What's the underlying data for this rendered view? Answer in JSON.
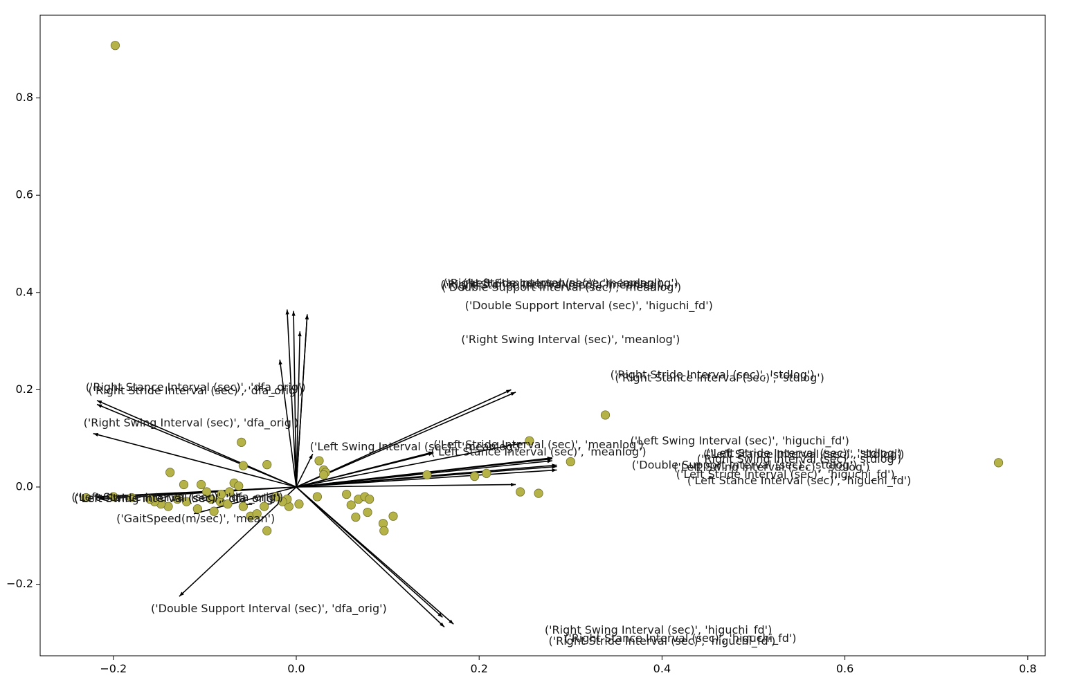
{
  "chart_data": {
    "type": "scatter",
    "title": "",
    "xlabel": "",
    "ylabel": "",
    "xlim": [
      -0.28,
      0.82
    ],
    "ylim": [
      -0.35,
      0.97
    ],
    "xticks": [
      {
        "value": -0.2,
        "label": "−0.2"
      },
      {
        "value": 0.0,
        "label": "0.0"
      },
      {
        "value": 0.2,
        "label": "0.2"
      },
      {
        "value": 0.4,
        "label": "0.4"
      },
      {
        "value": 0.6,
        "label": "0.6"
      },
      {
        "value": 0.8,
        "label": "0.8"
      }
    ],
    "yticks": [
      {
        "value": -0.2,
        "label": "−0.2"
      },
      {
        "value": 0.0,
        "label": "0.0"
      },
      {
        "value": 0.2,
        "label": "0.2"
      },
      {
        "value": 0.4,
        "label": "0.4"
      },
      {
        "value": 0.6,
        "label": "0.6"
      },
      {
        "value": 0.8,
        "label": "0.8"
      }
    ],
    "grid": false,
    "colors": {
      "points": "#b5b347",
      "point_edge": "#6f6e2a",
      "arrows": "#000000"
    },
    "points": [
      {
        "x": -0.198,
        "y": 0.908
      },
      {
        "x": 0.768,
        "y": 0.05
      },
      {
        "x": 0.338,
        "y": 0.148
      },
      {
        "x": 0.3,
        "y": 0.052
      },
      {
        "x": 0.255,
        "y": 0.095
      },
      {
        "x": 0.208,
        "y": 0.028
      },
      {
        "x": 0.195,
        "y": 0.022
      },
      {
        "x": 0.143,
        "y": 0.025
      },
      {
        "x": 0.245,
        "y": -0.01
      },
      {
        "x": 0.265,
        "y": -0.013
      },
      {
        "x": 0.025,
        "y": 0.054
      },
      {
        "x": 0.03,
        "y": 0.035
      },
      {
        "x": 0.032,
        "y": 0.03
      },
      {
        "x": 0.03,
        "y": 0.025
      },
      {
        "x": 0.023,
        "y": -0.02
      },
      {
        "x": 0.055,
        "y": -0.015
      },
      {
        "x": 0.06,
        "y": -0.037
      },
      {
        "x": 0.068,
        "y": -0.025
      },
      {
        "x": 0.075,
        "y": -0.02
      },
      {
        "x": 0.08,
        "y": -0.025
      },
      {
        "x": 0.078,
        "y": -0.052
      },
      {
        "x": 0.065,
        "y": -0.062
      },
      {
        "x": 0.095,
        "y": -0.075
      },
      {
        "x": 0.096,
        "y": -0.09
      },
      {
        "x": 0.106,
        "y": -0.06
      },
      {
        "x": -0.06,
        "y": 0.092
      },
      {
        "x": -0.058,
        "y": 0.044
      },
      {
        "x": -0.032,
        "y": 0.046
      },
      {
        "x": -0.138,
        "y": 0.03
      },
      {
        "x": -0.123,
        "y": 0.005
      },
      {
        "x": -0.104,
        "y": 0.005
      },
      {
        "x": -0.098,
        "y": -0.01
      },
      {
        "x": -0.093,
        "y": -0.025
      },
      {
        "x": -0.083,
        "y": -0.03
      },
      {
        "x": -0.073,
        "y": -0.01
      },
      {
        "x": -0.068,
        "y": 0.008
      },
      {
        "x": -0.063,
        "y": 0.002
      },
      {
        "x": -0.058,
        "y": -0.04
      },
      {
        "x": -0.05,
        "y": -0.06
      },
      {
        "x": -0.043,
        "y": -0.055
      },
      {
        "x": -0.035,
        "y": -0.04
      },
      {
        "x": -0.032,
        "y": -0.09
      },
      {
        "x": -0.008,
        "y": -0.04
      },
      {
        "x": -0.01,
        "y": -0.025
      },
      {
        "x": -0.015,
        "y": -0.03
      },
      {
        "x": -0.022,
        "y": -0.02
      },
      {
        "x": 0.003,
        "y": -0.035
      },
      {
        "x": -0.12,
        "y": -0.03
      },
      {
        "x": -0.13,
        "y": -0.025
      },
      {
        "x": -0.14,
        "y": -0.04
      },
      {
        "x": -0.148,
        "y": -0.035
      },
      {
        "x": -0.155,
        "y": -0.03
      },
      {
        "x": -0.16,
        "y": -0.025
      },
      {
        "x": -0.18,
        "y": -0.022
      },
      {
        "x": -0.2,
        "y": -0.02
      },
      {
        "x": -0.23,
        "y": -0.022
      },
      {
        "x": -0.108,
        "y": -0.045
      },
      {
        "x": -0.09,
        "y": -0.05
      },
      {
        "x": -0.075,
        "y": -0.035
      },
      {
        "x": -0.082,
        "y": -0.015
      }
    ],
    "loadings": [
      {
        "x": -0.01,
        "y": 0.365,
        "label": "('Right Stride Interval (sec)', 'meanlog')",
        "lx": 0.28,
        "ly": 0.418
      },
      {
        "x": -0.003,
        "y": 0.362,
        "label": "('Right Stance Interval (sec)', 'meanlog')",
        "lx": 0.28,
        "ly": 0.415
      },
      {
        "x": 0.012,
        "y": 0.355,
        "label": "('Double Support Interval (sec)', 'meanlog')",
        "lx": 0.29,
        "ly": 0.41
      },
      {
        "x": 0.012,
        "y": 0.355,
        "label": "('Double Support Interval (sec)', 'higuchi_fd')",
        "lx": 0.32,
        "ly": 0.372
      },
      {
        "x": 0.004,
        "y": 0.32,
        "label": "('Left Stance Interval (sec)', 'meanlog')",
        "lx": 0.3,
        "ly": 0.418
      },
      {
        "x": -0.018,
        "y": 0.262,
        "label": "('Right Swing Interval (sec)', 'meanlog')",
        "lx": 0.3,
        "ly": 0.302
      },
      {
        "x": -0.218,
        "y": 0.178,
        "label": "('Right Stance Interval (sec)', 'dfa_orig')",
        "lx": -0.11,
        "ly": 0.204
      },
      {
        "x": -0.218,
        "y": 0.17,
        "label": "('Right Stride Interval (sec)', 'dfa_orig')",
        "lx": -0.11,
        "ly": 0.197
      },
      {
        "x": -0.222,
        "y": 0.11,
        "label": "('Right Swing Interval (sec)', 'dfa_orig')",
        "lx": -0.115,
        "ly": 0.131
      },
      {
        "x": 0.235,
        "y": 0.2,
        "label": "('Right Stride Interval (sec)', 'stdlog')",
        "lx": 0.455,
        "ly": 0.23
      },
      {
        "x": 0.24,
        "y": 0.195,
        "label": "('Right Stance Interval (sec)', 'stdlog')",
        "lx": 0.463,
        "ly": 0.223
      },
      {
        "x": 0.018,
        "y": 0.068,
        "label": "('Left Swing Interval (sec)', 'meanlog')",
        "lx": 0.13,
        "ly": 0.082
      },
      {
        "x": 0.15,
        "y": 0.072,
        "label": "('Left Stride Interval (sec)', 'meanlog')",
        "lx": 0.265,
        "ly": 0.086
      },
      {
        "x": 0.15,
        "y": 0.07,
        "label": "('Left Stance Interval (sec)', 'meanlog')",
        "lx": 0.265,
        "ly": 0.071
      },
      {
        "x": 0.26,
        "y": 0.095,
        "label": "('Left Swing Interval (sec)', 'higuchi_fd')",
        "lx": 0.485,
        "ly": 0.094
      },
      {
        "x": 0.28,
        "y": 0.06,
        "label": "('Left Stride Interval (sec)', 'stdlog')",
        "lx": 0.555,
        "ly": 0.068
      },
      {
        "x": 0.28,
        "y": 0.058,
        "label": "('Left Stance Interval (sec)', 'stdlog')",
        "lx": 0.555,
        "ly": 0.066
      },
      {
        "x": 0.28,
        "y": 0.054,
        "label": "('Right Swing Interval (sec)', 'stdlog')",
        "lx": 0.55,
        "ly": 0.056
      },
      {
        "x": 0.285,
        "y": 0.045,
        "label": "('Double Support Interval (sec)', 'stdlog')",
        "lx": 0.49,
        "ly": 0.044
      },
      {
        "x": 0.285,
        "y": 0.042,
        "label": "('Left Swing Interval (sec)', 'stdlog')",
        "lx": 0.52,
        "ly": 0.04
      },
      {
        "x": 0.285,
        "y": 0.035,
        "label": "('Left Stride Interval (sec)', 'higuchi_fd')",
        "lx": 0.535,
        "ly": 0.025
      },
      {
        "x": 0.24,
        "y": 0.005,
        "label": "('Left Stance Interval (sec)', 'higuchi_fd')",
        "lx": 0.55,
        "ly": 0.012
      },
      {
        "x": -0.218,
        "y": -0.02,
        "label": "('Left Stance Interval (sec)', 'dfa_orig')",
        "lx": -0.13,
        "ly": -0.022
      },
      {
        "x": -0.218,
        "y": -0.022,
        "label": "('Left Stride Interval (sec)', 'dfa_orig')",
        "lx": -0.13,
        "ly": -0.024
      },
      {
        "x": -0.215,
        "y": -0.025,
        "label": "('Left Swing Interval (sec)', 'dfa_orig')",
        "lx": -0.13,
        "ly": -0.025
      },
      {
        "x": -0.112,
        "y": -0.055,
        "label": "('GaitSpeed(m/sec)', 'mean')",
        "lx": -0.11,
        "ly": -0.066
      },
      {
        "x": -0.128,
        "y": -0.225,
        "label": "('Double Support Interval (sec)', 'dfa_orig')",
        "lx": -0.03,
        "ly": -0.251
      },
      {
        "x": 0.172,
        "y": -0.282,
        "label": "('Right Swing Interval (sec)', 'higuchi_fd')",
        "lx": 0.396,
        "ly": -0.295
      },
      {
        "x": 0.16,
        "y": -0.268,
        "label": "('Right Stance Interval (sec)', 'higuchi_fd')",
        "lx": 0.42,
        "ly": -0.312
      },
      {
        "x": 0.162,
        "y": -0.288,
        "label": "('Right Stride Interval (sec)', 'higuchi_fd')",
        "lx": 0.4,
        "ly": -0.318
      }
    ]
  }
}
